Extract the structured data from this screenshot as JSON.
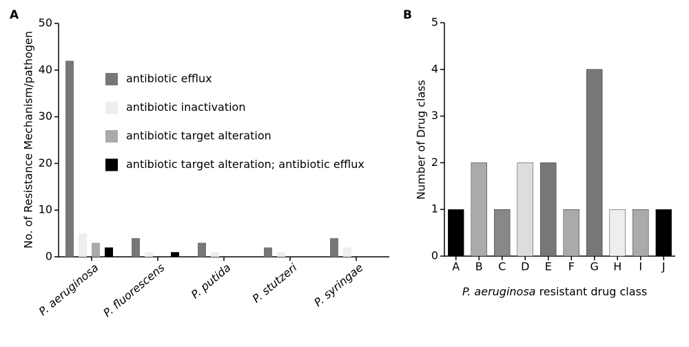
{
  "chart_data": [
    {
      "type": "bar",
      "panel": "A",
      "y_label": "No. of Resistance Mechanism/pathogen",
      "categories": [
        "P. aeruginosa",
        "P. fluorescens",
        "P. putida",
        "P. stutzeri",
        "P. syringae"
      ],
      "series": [
        {
          "name": "antibiotic efflux",
          "color": "#777777",
          "values": [
            42,
            4,
            3,
            2,
            4
          ]
        },
        {
          "name": "antibiotic inactivation",
          "color": "#eeeeee",
          "values": [
            5,
            1,
            1,
            1,
            2
          ]
        },
        {
          "name": "antibiotic target alteration",
          "color": "#aaaaaa",
          "values": [
            3,
            0,
            0,
            0,
            0
          ]
        },
        {
          "name": "antibiotic target alteration; antibiotic efflux",
          "color": "#000000",
          "values": [
            2,
            1,
            0,
            0,
            0
          ]
        }
      ],
      "ylim": [
        0,
        50
      ],
      "yticks": [
        0,
        10,
        20,
        30,
        40,
        50
      ],
      "x_tick_rotation": -40
    },
    {
      "type": "bar",
      "panel": "B",
      "y_label": "Number of Drug class",
      "x_label": {
        "italic": "P. aeruginosa",
        "rest": "resistant drug class"
      },
      "categories": [
        "A",
        "B",
        "C",
        "D",
        "E",
        "F",
        "G",
        "H",
        "I",
        "J"
      ],
      "values": [
        1,
        2,
        1,
        2,
        2,
        1,
        4,
        1,
        1,
        1
      ],
      "colors": [
        "#000000",
        "#aaaaaa",
        "#888888",
        "#dddddd",
        "#777777",
        "#aaaaaa",
        "#777777",
        "#eeeeee",
        "#aaaaaa",
        "#000000"
      ],
      "ylim": [
        0,
        5
      ],
      "yticks": [
        0,
        1,
        2,
        3,
        4,
        5
      ],
      "x_tick_rotation": 0
    }
  ]
}
